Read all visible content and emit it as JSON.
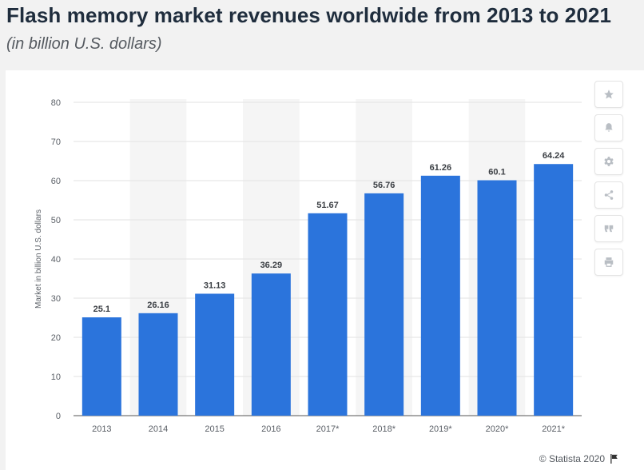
{
  "page": {
    "title": "Flash memory market revenues worldwide from 2013 to 2021",
    "subtitle": "(in billion U.S. dollars)"
  },
  "toolbar": {
    "buttons": [
      {
        "icon": "star-icon"
      },
      {
        "icon": "bell-icon"
      },
      {
        "icon": "gear-icon"
      },
      {
        "icon": "share-icon"
      },
      {
        "icon": "quote-icon"
      },
      {
        "icon": "print-icon"
      }
    ]
  },
  "source": {
    "text": "© Statista 2020",
    "icon": "flag-icon"
  },
  "chart_data": {
    "type": "bar",
    "categories": [
      "2013",
      "2014",
      "2015",
      "2016",
      "2017*",
      "2018*",
      "2019*",
      "2020*",
      "2021*"
    ],
    "values": [
      25.1,
      26.16,
      31.13,
      36.29,
      51.67,
      56.76,
      61.26,
      60.1,
      64.24
    ],
    "value_labels": [
      "25.1",
      "26.16",
      "31.13",
      "36.29",
      "51.67",
      "56.76",
      "61.26",
      "60.1",
      "64.24"
    ],
    "ylabel": "Market in billion U.S. dollars",
    "ylim": [
      0,
      80
    ],
    "yticks": [
      0,
      10,
      20,
      30,
      40,
      50,
      60,
      70,
      80
    ],
    "grid": true,
    "bar_color": "#2b74dc",
    "band_color": "#f5f5f5"
  }
}
